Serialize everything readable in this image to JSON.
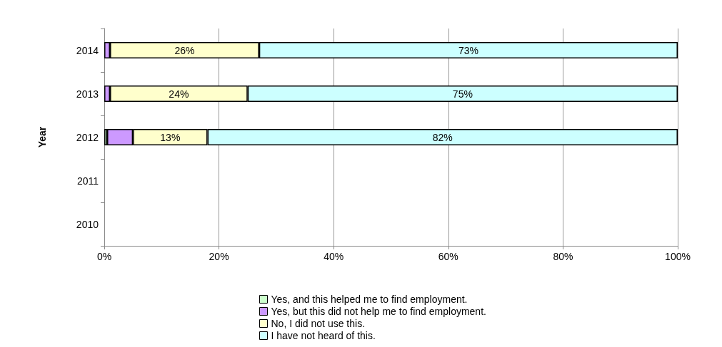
{
  "chart_data": {
    "type": "bar",
    "orientation": "horizontal",
    "stacked": true,
    "ylabel": "Year",
    "categories": [
      "2014",
      "2013",
      "2012",
      "2011",
      "2010"
    ],
    "series": [
      {
        "name": "Yes, and this helped me to find employment.",
        "color": "#ccffcc",
        "values": [
          null,
          null,
          0.5,
          null,
          null
        ]
      },
      {
        "name": "Yes, but this did not help me to find employment.",
        "color": "#cc99ff",
        "values": [
          1,
          1,
          4.5,
          null,
          null
        ]
      },
      {
        "name": "No, I did not use this.",
        "color": "#ffffcc",
        "values": [
          26,
          24,
          13,
          null,
          null
        ],
        "value_labels": [
          "26%",
          "24%",
          "13%",
          null,
          null
        ]
      },
      {
        "name": "I have not heard of this.",
        "color": "#ccffff",
        "values": [
          73,
          75,
          82,
          null,
          null
        ],
        "value_labels": [
          "73%",
          "75%",
          "82%",
          null,
          null
        ]
      }
    ],
    "xlim": [
      0,
      100
    ],
    "xticks": [
      {
        "value": 0,
        "label": "0%"
      },
      {
        "value": 20,
        "label": "20%"
      },
      {
        "value": 40,
        "label": "40%"
      },
      {
        "value": 60,
        "label": "60%"
      },
      {
        "value": 80,
        "label": "80%"
      },
      {
        "value": 100,
        "label": "100%"
      }
    ],
    "grid": "x",
    "legend": "bottom"
  }
}
